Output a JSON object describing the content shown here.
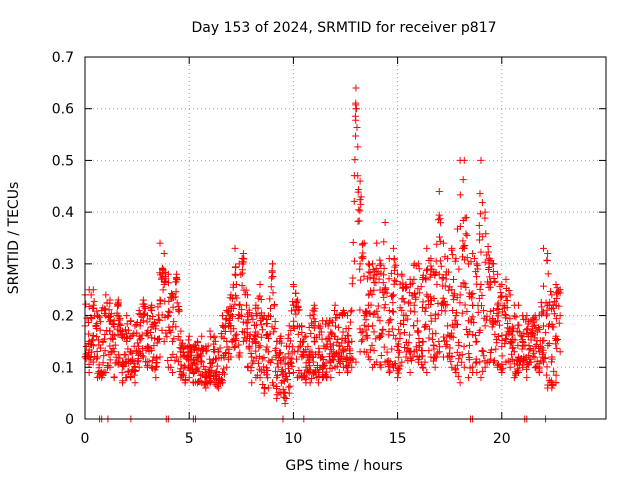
{
  "chart_data": {
    "type": "scatter",
    "title": "Day 153 of 2024, SRMTID for receiver p817",
    "xlabel": "GPS time / hours",
    "ylabel": "SRMTID / TECUs",
    "xlim": [
      0,
      25
    ],
    "ylim": [
      0,
      0.7
    ],
    "xticks": [
      0,
      5,
      10,
      15,
      20
    ],
    "yticks": [
      0,
      0.1,
      0.2,
      0.3,
      0.4,
      0.5,
      0.6,
      0.7
    ],
    "xtick_labels": [
      "0",
      "5",
      "10",
      "15",
      "20"
    ],
    "ytick_labels": [
      "0",
      "0.1",
      "0.2",
      "0.3",
      "0.4",
      "0.5",
      "0.6",
      "0.7"
    ],
    "grid": true,
    "marker": "+",
    "color": "#ff0000",
    "series": [
      {
        "name": "SRMTID",
        "x": [
          0.0,
          0.2,
          0.4,
          0.6,
          0.8,
          1.0,
          1.2,
          1.4,
          1.6,
          1.8,
          2.0,
          2.2,
          2.4,
          2.6,
          2.8,
          3.0,
          3.2,
          3.4,
          3.6,
          3.8,
          4.0,
          4.2,
          4.4,
          4.6,
          4.8,
          5.0,
          5.2,
          5.4,
          5.6,
          5.8,
          6.0,
          6.2,
          6.4,
          6.6,
          6.8,
          7.0,
          7.2,
          7.4,
          7.6,
          7.8,
          8.0,
          8.2,
          8.4,
          8.6,
          8.8,
          9.0,
          9.2,
          9.4,
          9.6,
          9.8,
          10.0,
          10.2,
          10.4,
          10.6,
          10.8,
          11.0,
          11.2,
          11.4,
          11.6,
          11.8,
          12.0,
          12.2,
          12.4,
          12.6,
          12.8,
          13.0,
          13.2,
          13.4,
          13.6,
          13.8,
          14.0,
          14.2,
          14.4,
          14.6,
          14.8,
          15.0,
          15.2,
          15.4,
          15.6,
          15.8,
          16.0,
          16.2,
          16.4,
          16.6,
          16.8,
          17.0,
          17.2,
          17.4,
          17.6,
          17.8,
          18.0,
          18.2,
          18.4,
          18.6,
          18.8,
          19.0,
          19.2,
          19.4,
          19.6,
          19.8,
          20.0,
          20.2,
          20.4,
          20.6,
          20.8,
          21.0,
          21.2,
          21.4,
          21.6,
          21.8,
          22.0,
          22.2,
          22.4,
          22.6,
          22.8
        ],
        "y": [
          0.18,
          0.15,
          0.22,
          0.12,
          0.09,
          0.2,
          0.17,
          0.13,
          0.22,
          0.11,
          0.15,
          0.13,
          0.1,
          0.16,
          0.19,
          0.14,
          0.21,
          0.1,
          0.23,
          0.32,
          0.2,
          0.15,
          0.27,
          0.12,
          0.1,
          0.14,
          0.09,
          0.12,
          0.11,
          0.08,
          0.1,
          0.13,
          0.07,
          0.09,
          0.15,
          0.18,
          0.28,
          0.22,
          0.31,
          0.16,
          0.12,
          0.15,
          0.2,
          0.09,
          0.13,
          0.3,
          0.08,
          0.11,
          0.05,
          0.14,
          0.22,
          0.18,
          0.12,
          0.1,
          0.13,
          0.15,
          0.09,
          0.12,
          0.14,
          0.11,
          0.16,
          0.12,
          0.13,
          0.14,
          0.15,
          0.6,
          0.3,
          0.2,
          0.22,
          0.18,
          0.28,
          0.16,
          0.25,
          0.19,
          0.24,
          0.14,
          0.21,
          0.2,
          0.13,
          0.22,
          0.17,
          0.15,
          0.24,
          0.2,
          0.12,
          0.28,
          0.22,
          0.18,
          0.25,
          0.2,
          0.24,
          0.33,
          0.19,
          0.22,
          0.15,
          0.26,
          0.18,
          0.3,
          0.21,
          0.19,
          0.14,
          0.2,
          0.17,
          0.13,
          0.12,
          0.15,
          0.11,
          0.16,
          0.14,
          0.13,
          0.18,
          0.22,
          0.12,
          0.16,
          0.2
        ],
        "y_high": [
          0.24,
          0.25,
          0.25,
          0.2,
          0.21,
          0.24,
          0.23,
          0.19,
          0.23,
          0.17,
          0.2,
          0.19,
          0.18,
          0.21,
          0.23,
          0.2,
          0.22,
          0.18,
          0.34,
          0.26,
          0.28,
          0.24,
          0.28,
          0.17,
          0.14,
          0.16,
          0.14,
          0.15,
          0.16,
          0.14,
          0.17,
          0.16,
          0.13,
          0.2,
          0.21,
          0.24,
          0.33,
          0.3,
          0.32,
          0.24,
          0.2,
          0.22,
          0.26,
          0.2,
          0.2,
          0.3,
          0.15,
          0.16,
          0.12,
          0.18,
          0.26,
          0.23,
          0.18,
          0.16,
          0.2,
          0.22,
          0.18,
          0.19,
          0.19,
          0.19,
          0.22,
          0.2,
          0.21,
          0.2,
          0.21,
          0.64,
          0.46,
          0.34,
          0.3,
          0.3,
          0.34,
          0.3,
          0.38,
          0.31,
          0.33,
          0.28,
          0.28,
          0.26,
          0.27,
          0.3,
          0.3,
          0.27,
          0.33,
          0.31,
          0.28,
          0.44,
          0.34,
          0.31,
          0.33,
          0.31,
          0.5,
          0.5,
          0.3,
          0.32,
          0.3,
          0.5,
          0.4,
          0.31,
          0.3,
          0.28,
          0.26,
          0.27,
          0.24,
          0.22,
          0.22,
          0.2,
          0.2,
          0.19,
          0.2,
          0.2,
          0.33,
          0.32,
          0.24,
          0.26,
          0.25
        ],
        "y_low": [
          0.12,
          0.09,
          0.11,
          0.08,
          0.08,
          0.09,
          0.1,
          0.08,
          0.11,
          0.07,
          0.08,
          0.08,
          0.07,
          0.1,
          0.12,
          0.1,
          0.1,
          0.08,
          0.12,
          0.15,
          0.1,
          0.09,
          0.12,
          0.08,
          0.07,
          0.08,
          0.07,
          0.07,
          0.07,
          0.06,
          0.07,
          0.07,
          0.06,
          0.07,
          0.1,
          0.12,
          0.14,
          0.12,
          0.15,
          0.1,
          0.07,
          0.08,
          0.08,
          0.05,
          0.06,
          0.07,
          0.04,
          0.05,
          0.03,
          0.05,
          0.09,
          0.08,
          0.08,
          0.07,
          0.07,
          0.09,
          0.07,
          0.08,
          0.08,
          0.08,
          0.1,
          0.09,
          0.1,
          0.09,
          0.1,
          0.11,
          0.13,
          0.13,
          0.12,
          0.1,
          0.11,
          0.1,
          0.11,
          0.09,
          0.1,
          0.08,
          0.11,
          0.12,
          0.09,
          0.13,
          0.11,
          0.1,
          0.09,
          0.12,
          0.1,
          0.13,
          0.12,
          0.12,
          0.1,
          0.09,
          0.07,
          0.1,
          0.08,
          0.09,
          0.09,
          0.08,
          0.1,
          0.11,
          0.11,
          0.1,
          0.09,
          0.11,
          0.1,
          0.08,
          0.09,
          0.1,
          0.08,
          0.11,
          0.1,
          0.09,
          0.11,
          0.06,
          0.06,
          0.07,
          0.13
        ],
        "zero_markers_x": [
          0.7,
          0.8,
          1.1,
          2.2,
          3.9,
          4.0,
          5.2,
          5.3,
          9.5,
          10.5,
          18.5,
          18.6,
          21.1,
          21.2,
          22.1
        ]
      }
    ]
  }
}
